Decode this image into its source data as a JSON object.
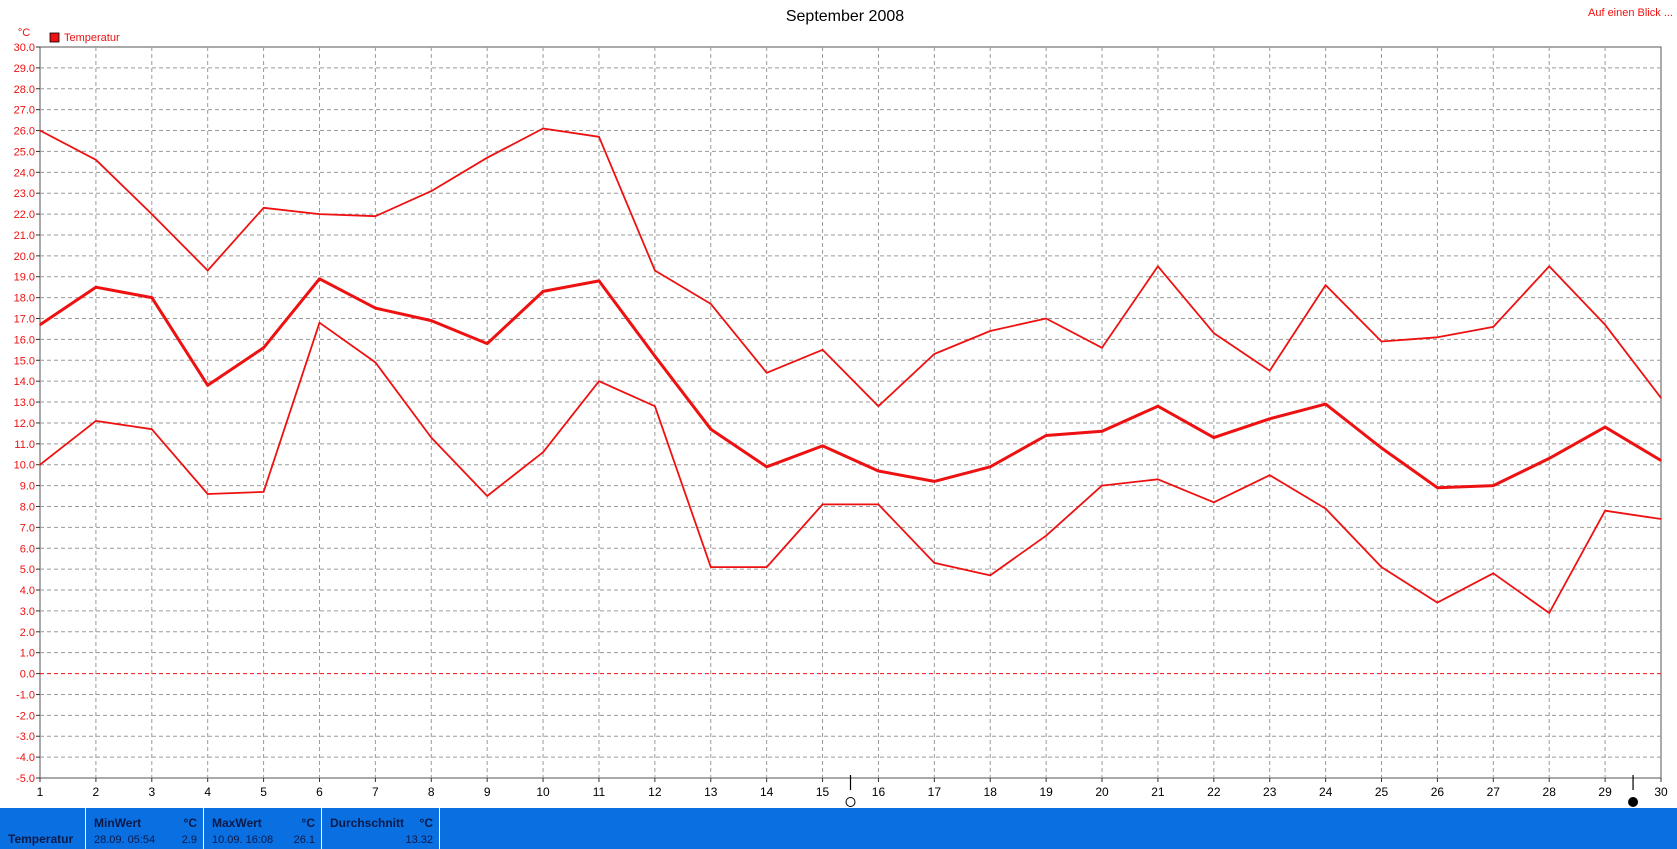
{
  "header": {
    "title": "September 2008",
    "link": "Auf einen Blick ..."
  },
  "colors": {
    "series": "#ee1111",
    "grid": "#9a9a9a",
    "zero_line": "#ee1111",
    "stat_bar": "#0a6fe0"
  },
  "chart_data": {
    "type": "line",
    "title": "September 2008",
    "ylabel": "°C",
    "xlabel": "",
    "x": [
      1,
      2,
      3,
      4,
      5,
      6,
      7,
      8,
      9,
      10,
      11,
      12,
      13,
      14,
      15,
      16,
      17,
      18,
      19,
      20,
      21,
      22,
      23,
      24,
      25,
      26,
      27,
      28,
      29,
      30
    ],
    "ylim": [
      -5.0,
      30.0
    ],
    "ytick_step": 1.0,
    "grid": true,
    "legend_position": "top-left",
    "legend": [
      {
        "label": "Temperatur",
        "color": "#ee1111"
      }
    ],
    "series": [
      {
        "role": "max",
        "values": [
          26.0,
          24.6,
          22.0,
          19.3,
          22.3,
          22.0,
          21.9,
          23.1,
          24.7,
          26.1,
          25.7,
          19.3,
          17.7,
          14.4,
          15.5,
          12.8,
          15.3,
          16.4,
          17.0,
          15.6,
          19.5,
          16.3,
          14.5,
          18.6,
          15.9,
          16.1,
          16.6,
          19.5,
          16.7,
          13.2
        ]
      },
      {
        "role": "mean",
        "values": [
          16.7,
          18.5,
          18.0,
          13.8,
          15.6,
          18.9,
          17.5,
          16.9,
          15.8,
          18.3,
          18.8,
          15.2,
          11.7,
          9.9,
          10.9,
          9.7,
          9.2,
          9.9,
          11.4,
          11.6,
          12.8,
          11.3,
          12.2,
          12.9,
          10.8,
          8.9,
          9.0,
          10.3,
          11.8,
          10.2
        ]
      },
      {
        "role": "min",
        "values": [
          10.0,
          12.1,
          11.7,
          8.6,
          8.7,
          16.8,
          14.9,
          11.3,
          8.5,
          10.6,
          14.0,
          12.8,
          5.1,
          5.1,
          8.1,
          8.1,
          5.3,
          4.7,
          6.6,
          9.0,
          9.3,
          8.2,
          9.5,
          7.9,
          5.1,
          3.4,
          4.8,
          2.9,
          7.8,
          7.4
        ]
      }
    ],
    "markers": [
      {
        "x": 15.5,
        "icon": "full-moon-icon"
      },
      {
        "x": 29.5,
        "icon": "new-moon-icon"
      }
    ]
  },
  "stats": {
    "series_name": "Temperatur",
    "min": {
      "label": "MinWert",
      "unit": "°C",
      "time": "28.09.  05:54",
      "value": "2.9"
    },
    "max": {
      "label": "MaxWert",
      "unit": "°C",
      "time": "10.09.  16:08",
      "value": "26.1"
    },
    "avg": {
      "label": "Durchschnitt",
      "unit": "°C",
      "value": "13.32"
    }
  }
}
